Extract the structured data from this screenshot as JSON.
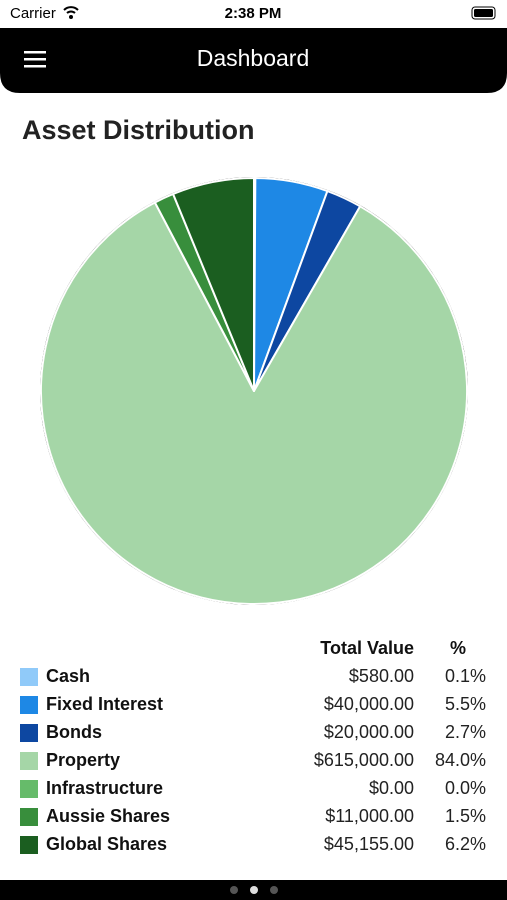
{
  "status_bar": {
    "carrier": "Carrier",
    "time": "2:38 PM"
  },
  "header": {
    "title": "Dashboard"
  },
  "chart_data": {
    "type": "pie",
    "title": "Asset Distribution",
    "categories": [
      "Cash",
      "Fixed Interest",
      "Bonds",
      "Property",
      "Infrastructure",
      "Aussie Shares",
      "Global Shares"
    ],
    "values": [
      0.1,
      5.5,
      2.7,
      84.0,
      0.0,
      1.5,
      6.2
    ],
    "value_labels": [
      "0.1%",
      "5.5%",
      "2.7%",
      "84.0%",
      "0.0%",
      "1.5%",
      "6.2%"
    ],
    "colors": [
      "#90caf9",
      "#1e88e5",
      "#0d47a1",
      "#a5d6a7",
      "#66bb6a",
      "#388e3c",
      "#1b5e20"
    ],
    "columns": [
      "Total Value",
      "%"
    ],
    "amount_labels": [
      "$580.00",
      "$40,000.00",
      "$20,000.00",
      "$615,000.00",
      "$0.00",
      "$11,000.00",
      "$45,155.00"
    ]
  }
}
